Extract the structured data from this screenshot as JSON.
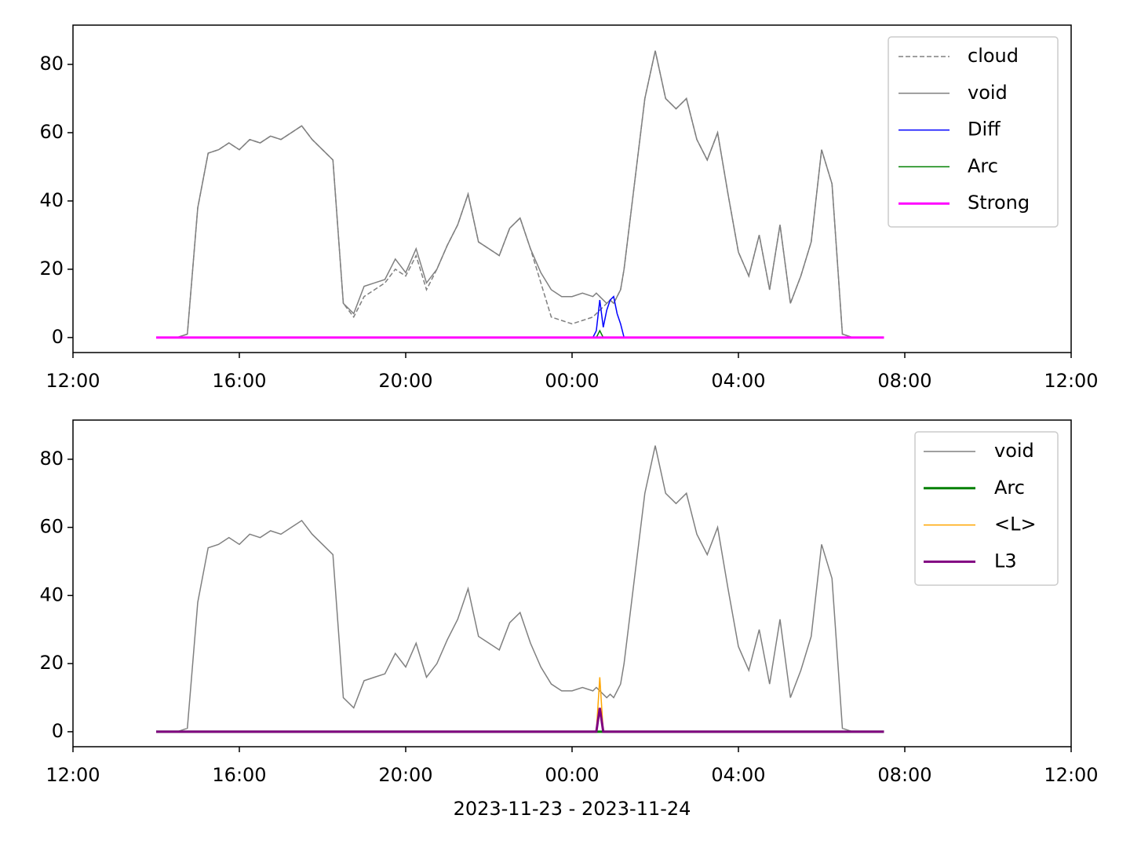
{
  "chart_data": [
    {
      "type": "line",
      "x": [
        "2023-11-23T14:00",
        "2023-11-23T14:15",
        "2023-11-23T14:30",
        "2023-11-23T14:45",
        "2023-11-23T15:00",
        "2023-11-23T15:15",
        "2023-11-23T15:30",
        "2023-11-23T15:45",
        "2023-11-23T16:00",
        "2023-11-23T16:15",
        "2023-11-23T16:30",
        "2023-11-23T16:45",
        "2023-11-23T17:00",
        "2023-11-23T17:15",
        "2023-11-23T17:30",
        "2023-11-23T17:45",
        "2023-11-23T18:00",
        "2023-11-23T18:15",
        "2023-11-23T18:30",
        "2023-11-23T18:45",
        "2023-11-23T19:00",
        "2023-11-23T19:15",
        "2023-11-23T19:30",
        "2023-11-23T19:45",
        "2023-11-23T20:00",
        "2023-11-23T20:15",
        "2023-11-23T20:30",
        "2023-11-23T20:45",
        "2023-11-23T21:00",
        "2023-11-23T21:15",
        "2023-11-23T21:30",
        "2023-11-23T21:45",
        "2023-11-23T22:00",
        "2023-11-23T22:15",
        "2023-11-23T22:30",
        "2023-11-23T22:45",
        "2023-11-23T23:00",
        "2023-11-23T23:15",
        "2023-11-23T23:30",
        "2023-11-23T23:45",
        "2023-11-24T00:00",
        "2023-11-24T00:15",
        "2023-11-24T00:30",
        "2023-11-24T00:35",
        "2023-11-24T00:40",
        "2023-11-24T00:45",
        "2023-11-24T00:50",
        "2023-11-24T00:55",
        "2023-11-24T01:00",
        "2023-11-24T01:05",
        "2023-11-24T01:10",
        "2023-11-24T01:15",
        "2023-11-24T01:30",
        "2023-11-24T01:45",
        "2023-11-24T02:00",
        "2023-11-24T02:15",
        "2023-11-24T02:30",
        "2023-11-24T02:45",
        "2023-11-24T03:00",
        "2023-11-24T03:15",
        "2023-11-24T03:30",
        "2023-11-24T03:45",
        "2023-11-24T04:00",
        "2023-11-24T04:15",
        "2023-11-24T04:30",
        "2023-11-24T04:45",
        "2023-11-24T05:00",
        "2023-11-24T05:15",
        "2023-11-24T05:30",
        "2023-11-24T05:45",
        "2023-11-24T06:00",
        "2023-11-24T06:15",
        "2023-11-24T06:30",
        "2023-11-24T06:45",
        "2023-11-24T07:00",
        "2023-11-24T07:15",
        "2023-11-24T07:30"
      ],
      "series": [
        {
          "name": "cloud",
          "color": "#808080",
          "linestyle": "dashed",
          "linewidth": 1.5,
          "values": [
            0,
            0,
            0,
            1,
            38,
            54,
            55,
            57,
            55,
            58,
            57,
            59,
            58,
            60,
            62,
            58,
            55,
            52,
            10,
            6,
            12,
            14,
            16,
            20,
            18,
            24,
            14,
            20,
            27,
            33,
            42,
            28,
            26,
            24,
            32,
            35,
            26,
            16,
            6,
            5,
            4,
            5,
            6,
            7,
            8,
            9,
            10,
            11,
            10,
            12,
            14,
            20,
            45,
            70,
            84,
            70,
            67,
            70,
            58,
            52,
            60,
            42,
            25,
            18,
            30,
            14,
            33,
            10,
            18,
            28,
            55,
            45,
            1,
            0,
            0,
            0,
            0
          ]
        },
        {
          "name": "void",
          "color": "#808080",
          "linestyle": "solid",
          "linewidth": 1.5,
          "values": [
            0,
            0,
            0,
            1,
            38,
            54,
            55,
            57,
            55,
            58,
            57,
            59,
            58,
            60,
            62,
            58,
            55,
            52,
            10,
            7,
            15,
            16,
            17,
            23,
            19,
            26,
            16,
            20,
            27,
            33,
            42,
            28,
            26,
            24,
            32,
            35,
            26,
            19,
            14,
            12,
            12,
            13,
            12,
            13,
            12,
            11,
            10,
            11,
            10,
            12,
            14,
            20,
            45,
            70,
            84,
            70,
            67,
            70,
            58,
            52,
            60,
            42,
            25,
            18,
            30,
            14,
            33,
            10,
            18,
            28,
            55,
            45,
            1,
            0,
            0,
            0,
            0
          ]
        },
        {
          "name": "Diff",
          "color": "#0000ff",
          "linestyle": "solid",
          "linewidth": 1.5,
          "values": [
            0,
            0,
            0,
            0,
            0,
            0,
            0,
            0,
            0,
            0,
            0,
            0,
            0,
            0,
            0,
            0,
            0,
            0,
            0,
            0,
            0,
            0,
            0,
            0,
            0,
            0,
            0,
            0,
            0,
            0,
            0,
            0,
            0,
            0,
            0,
            0,
            0,
            0,
            0,
            0,
            0,
            0,
            0,
            2,
            11,
            3,
            8,
            11,
            12,
            7,
            4,
            0,
            0,
            0,
            0,
            0,
            0,
            0,
            0,
            0,
            0,
            0,
            0,
            0,
            0,
            0,
            0,
            0,
            0,
            0,
            0,
            0,
            0,
            0,
            0,
            0,
            0
          ]
        },
        {
          "name": "Arc",
          "color": "#008000",
          "linestyle": "solid",
          "linewidth": 1.5,
          "values": [
            0,
            0,
            0,
            0,
            0,
            0,
            0,
            0,
            0,
            0,
            0,
            0,
            0,
            0,
            0,
            0,
            0,
            0,
            0,
            0,
            0,
            0,
            0,
            0,
            0,
            0,
            0,
            0,
            0,
            0,
            0,
            0,
            0,
            0,
            0,
            0,
            0,
            0,
            0,
            0,
            0,
            0,
            0,
            0,
            2,
            0,
            0,
            0,
            0,
            0,
            0,
            0,
            0,
            0,
            0,
            0,
            0,
            0,
            0,
            0,
            0,
            0,
            0,
            0,
            0,
            0,
            0,
            0,
            0,
            0,
            0,
            0,
            0,
            0,
            0,
            0,
            0
          ]
        },
        {
          "name": "Strong",
          "color": "#ff00ff",
          "linestyle": "solid",
          "linewidth": 3,
          "values": [
            0,
            0,
            0,
            0,
            0,
            0,
            0,
            0,
            0,
            0,
            0,
            0,
            0,
            0,
            0,
            0,
            0,
            0,
            0,
            0,
            0,
            0,
            0,
            0,
            0,
            0,
            0,
            0,
            0,
            0,
            0,
            0,
            0,
            0,
            0,
            0,
            0,
            0,
            0,
            0,
            0,
            0,
            0,
            0,
            0,
            0,
            0,
            0,
            0,
            0,
            0,
            0,
            0,
            0,
            0,
            0,
            0,
            0,
            0,
            0,
            0,
            0,
            0,
            0,
            0,
            0,
            0,
            0,
            0,
            0,
            0,
            0,
            0,
            0,
            0,
            0,
            0
          ]
        }
      ],
      "xlim": [
        "2023-11-23T12:00",
        "2023-11-24T12:00"
      ],
      "xticks": [
        {
          "value": "2023-11-23T12:00",
          "label": "12:00"
        },
        {
          "value": "2023-11-23T16:00",
          "label": "16:00"
        },
        {
          "value": "2023-11-23T20:00",
          "label": "20:00"
        },
        {
          "value": "2023-11-24T00:00",
          "label": "00:00"
        },
        {
          "value": "2023-11-24T04:00",
          "label": "04:00"
        },
        {
          "value": "2023-11-24T08:00",
          "label": "08:00"
        },
        {
          "value": "2023-11-24T12:00",
          "label": "12:00"
        }
      ],
      "ylim": [
        -4.4,
        91.5
      ],
      "yticks": [
        0,
        20,
        40,
        60,
        80
      ],
      "legend": "upper right"
    },
    {
      "type": "line",
      "x": [
        "2023-11-23T14:00",
        "2023-11-23T14:15",
        "2023-11-23T14:30",
        "2023-11-23T14:45",
        "2023-11-23T15:00",
        "2023-11-23T15:15",
        "2023-11-23T15:30",
        "2023-11-23T15:45",
        "2023-11-23T16:00",
        "2023-11-23T16:15",
        "2023-11-23T16:30",
        "2023-11-23T16:45",
        "2023-11-23T17:00",
        "2023-11-23T17:15",
        "2023-11-23T17:30",
        "2023-11-23T17:45",
        "2023-11-23T18:00",
        "2023-11-23T18:15",
        "2023-11-23T18:30",
        "2023-11-23T18:45",
        "2023-11-23T19:00",
        "2023-11-23T19:15",
        "2023-11-23T19:30",
        "2023-11-23T19:45",
        "2023-11-23T20:00",
        "2023-11-23T20:15",
        "2023-11-23T20:30",
        "2023-11-23T20:45",
        "2023-11-23T21:00",
        "2023-11-23T21:15",
        "2023-11-23T21:30",
        "2023-11-23T21:45",
        "2023-11-23T22:00",
        "2023-11-23T22:15",
        "2023-11-23T22:30",
        "2023-11-23T22:45",
        "2023-11-23T23:00",
        "2023-11-23T23:15",
        "2023-11-23T23:30",
        "2023-11-23T23:45",
        "2023-11-24T00:00",
        "2023-11-24T00:15",
        "2023-11-24T00:30",
        "2023-11-24T00:35",
        "2023-11-24T00:40",
        "2023-11-24T00:45",
        "2023-11-24T00:50",
        "2023-11-24T00:55",
        "2023-11-24T01:00",
        "2023-11-24T01:05",
        "2023-11-24T01:10",
        "2023-11-24T01:15",
        "2023-11-24T01:30",
        "2023-11-24T01:45",
        "2023-11-24T02:00",
        "2023-11-24T02:15",
        "2023-11-24T02:30",
        "2023-11-24T02:45",
        "2023-11-24T03:00",
        "2023-11-24T03:15",
        "2023-11-24T03:30",
        "2023-11-24T03:45",
        "2023-11-24T04:00",
        "2023-11-24T04:15",
        "2023-11-24T04:30",
        "2023-11-24T04:45",
        "2023-11-24T05:00",
        "2023-11-24T05:15",
        "2023-11-24T05:30",
        "2023-11-24T05:45",
        "2023-11-24T06:00",
        "2023-11-24T06:15",
        "2023-11-24T06:30",
        "2023-11-24T06:45",
        "2023-11-24T07:00",
        "2023-11-24T07:15",
        "2023-11-24T07:30"
      ],
      "series": [
        {
          "name": "void",
          "color": "#808080",
          "linestyle": "solid",
          "linewidth": 1.5,
          "values": [
            0,
            0,
            0,
            1,
            38,
            54,
            55,
            57,
            55,
            58,
            57,
            59,
            58,
            60,
            62,
            58,
            55,
            52,
            10,
            7,
            15,
            16,
            17,
            23,
            19,
            26,
            16,
            20,
            27,
            33,
            42,
            28,
            26,
            24,
            32,
            35,
            26,
            19,
            14,
            12,
            12,
            13,
            12,
            13,
            12,
            11,
            10,
            11,
            10,
            12,
            14,
            20,
            45,
            70,
            84,
            70,
            67,
            70,
            58,
            52,
            60,
            42,
            25,
            18,
            30,
            14,
            33,
            10,
            18,
            28,
            55,
            45,
            1,
            0,
            0,
            0,
            0
          ]
        },
        {
          "name": "Arc",
          "color": "#008000",
          "linestyle": "solid",
          "linewidth": 3,
          "values": [
            0,
            0,
            0,
            0,
            0,
            0,
            0,
            0,
            0,
            0,
            0,
            0,
            0,
            0,
            0,
            0,
            0,
            0,
            0,
            0,
            0,
            0,
            0,
            0,
            0,
            0,
            0,
            0,
            0,
            0,
            0,
            0,
            0,
            0,
            0,
            0,
            0,
            0,
            0,
            0,
            0,
            0,
            0,
            0,
            0,
            0,
            0,
            0,
            0,
            0,
            0,
            0,
            0,
            0,
            0,
            0,
            0,
            0,
            0,
            0,
            0,
            0,
            0,
            0,
            0,
            0,
            0,
            0,
            0,
            0,
            0,
            0,
            0,
            0,
            0,
            0,
            0
          ]
        },
        {
          "name": "<L>",
          "color": "#ffa500",
          "linestyle": "solid",
          "linewidth": 1.5,
          "values": [
            0,
            0,
            0,
            0,
            0,
            0,
            0,
            0,
            0,
            0,
            0,
            0,
            0,
            0,
            0,
            0,
            0,
            0,
            0,
            0,
            0,
            0,
            0,
            0,
            0,
            0,
            0,
            0,
            0,
            0,
            0,
            0,
            0,
            0,
            0,
            0,
            0,
            0,
            0,
            0,
            0,
            0,
            0,
            0,
            16,
            0,
            0,
            0,
            0,
            0,
            0,
            0,
            0,
            0,
            0,
            0,
            0,
            0,
            0,
            0,
            0,
            0,
            0,
            0,
            0,
            0,
            0,
            0,
            0,
            0,
            0,
            0,
            0,
            0,
            0,
            0,
            0
          ]
        },
        {
          "name": "L3",
          "color": "#800080",
          "linestyle": "solid",
          "linewidth": 3,
          "values": [
            0,
            0,
            0,
            0,
            0,
            0,
            0,
            0,
            0,
            0,
            0,
            0,
            0,
            0,
            0,
            0,
            0,
            0,
            0,
            0,
            0,
            0,
            0,
            0,
            0,
            0,
            0,
            0,
            0,
            0,
            0,
            0,
            0,
            0,
            0,
            0,
            0,
            0,
            0,
            0,
            0,
            0,
            0,
            0,
            7,
            0,
            0,
            0,
            0,
            0,
            0,
            0,
            0,
            0,
            0,
            0,
            0,
            0,
            0,
            0,
            0,
            0,
            0,
            0,
            0,
            0,
            0,
            0,
            0,
            0,
            0,
            0,
            0,
            0,
            0,
            0,
            0
          ]
        }
      ],
      "xlabel": "2023-11-23 - 2023-11-24",
      "xlim": [
        "2023-11-23T12:00",
        "2023-11-24T12:00"
      ],
      "xticks": [
        {
          "value": "2023-11-23T12:00",
          "label": "12:00"
        },
        {
          "value": "2023-11-23T16:00",
          "label": "16:00"
        },
        {
          "value": "2023-11-23T20:00",
          "label": "20:00"
        },
        {
          "value": "2023-11-24T00:00",
          "label": "00:00"
        },
        {
          "value": "2023-11-24T04:00",
          "label": "04:00"
        },
        {
          "value": "2023-11-24T08:00",
          "label": "08:00"
        },
        {
          "value": "2023-11-24T12:00",
          "label": "12:00"
        }
      ],
      "ylim": [
        -4.4,
        91.5
      ],
      "yticks": [
        0,
        20,
        40,
        60,
        80
      ],
      "legend": "upper right"
    }
  ]
}
